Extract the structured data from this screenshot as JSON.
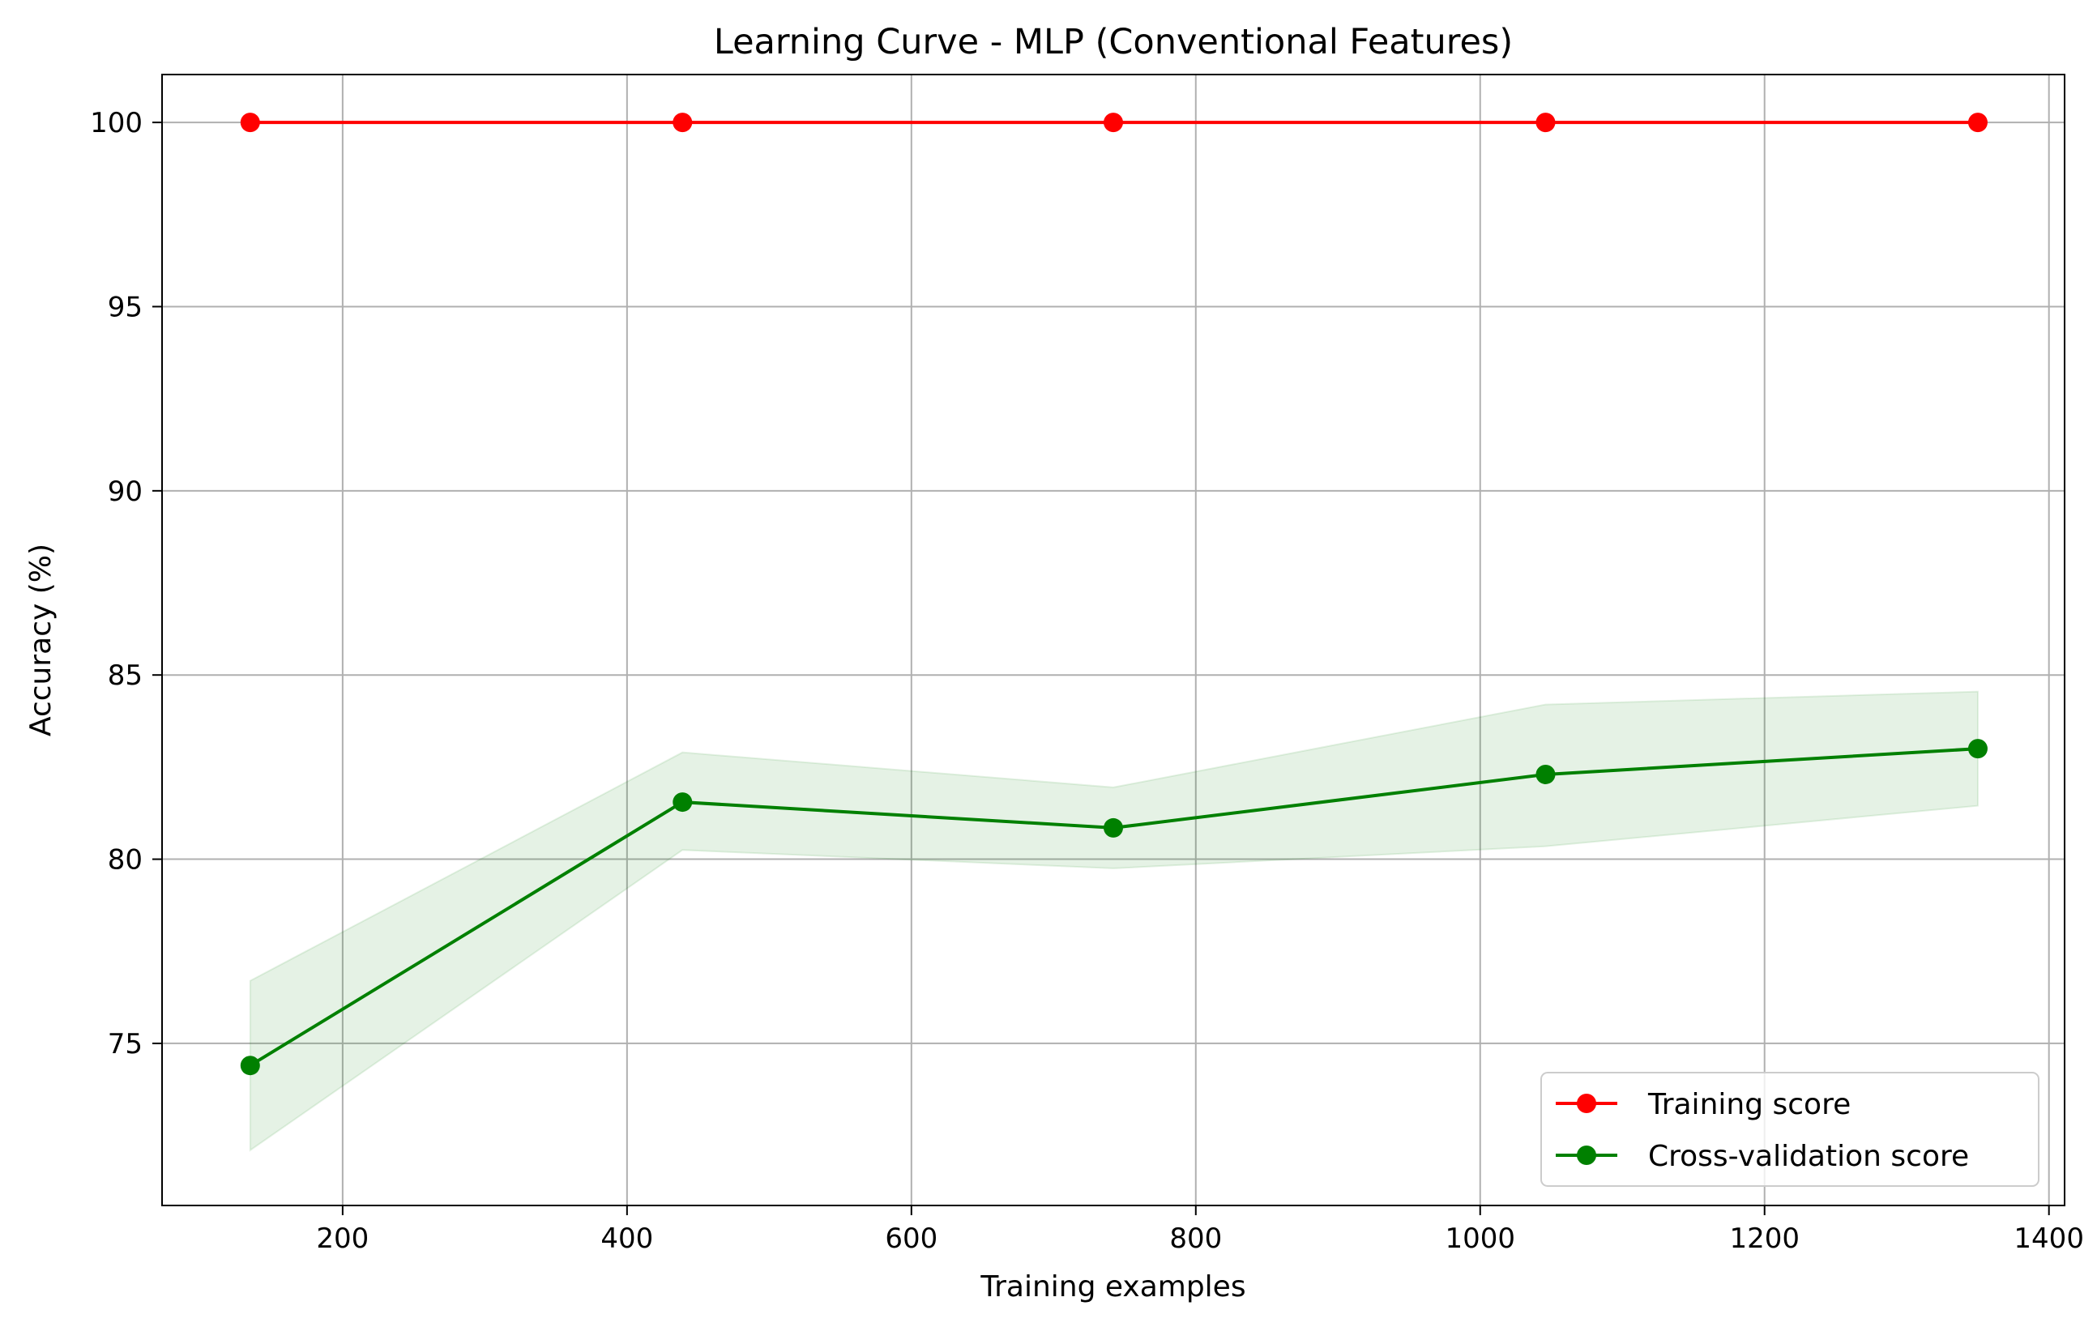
{
  "chart_data": {
    "type": "line",
    "title": "Learning Curve - MLP (Conventional Features)",
    "xlabel": "Training examples",
    "ylabel": "Accuracy (%)",
    "xlim": [
      73,
      1411
    ],
    "ylim": [
      70.6,
      101.3
    ],
    "xticks": [
      200,
      400,
      600,
      800,
      1000,
      1200,
      1400
    ],
    "yticks": [
      75,
      80,
      85,
      90,
      95,
      100
    ],
    "grid": true,
    "legend_position": "lower right",
    "x": [
      135,
      439,
      742,
      1046,
      1350
    ],
    "series": [
      {
        "name": "Training score",
        "color": "#ff0000",
        "marker": "circle",
        "values": [
          100,
          100,
          100,
          100,
          100
        ],
        "band_lower": [
          100,
          100,
          100,
          100,
          100
        ],
        "band_upper": [
          100,
          100,
          100,
          100,
          100
        ]
      },
      {
        "name": "Cross-validation score",
        "color": "#008000",
        "marker": "circle",
        "values": [
          74.4,
          81.55,
          80.85,
          82.3,
          83.0
        ],
        "band_lower": [
          72.1,
          80.25,
          79.75,
          80.35,
          81.45
        ],
        "band_upper": [
          76.7,
          82.9,
          81.95,
          84.2,
          84.55
        ],
        "band_color": "#008000",
        "band_opacity": 0.1
      }
    ]
  }
}
